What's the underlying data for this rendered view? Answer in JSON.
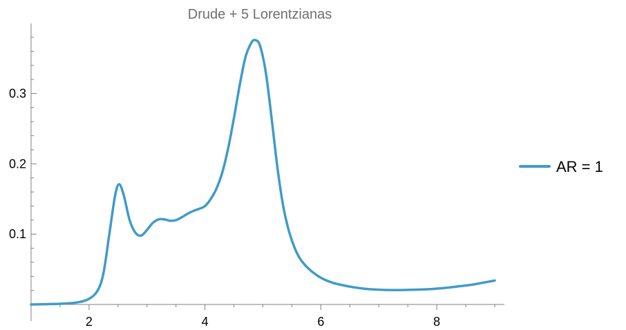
{
  "chart_data": {
    "type": "line",
    "title": "Drude + 5 Lorentzianas",
    "xlabel": "",
    "ylabel": "",
    "xlim": [
      1.0,
      9.0
    ],
    "ylim": [
      0.0,
      0.38
    ],
    "x_ticks": [
      2,
      4,
      6,
      8
    ],
    "y_ticks": [
      0.1,
      0.2,
      0.3
    ],
    "x_tick_labels": [
      "2",
      "4",
      "6",
      "8"
    ],
    "y_tick_labels": [
      "0.1",
      "0.2",
      "0.3"
    ],
    "grid": false,
    "legend_position": "right",
    "colors": {
      "series": "#3f9bc9",
      "axis": "#7f7f7f"
    },
    "series": [
      {
        "name": "AR = 1",
        "x": [
          1.0,
          1.5,
          1.8,
          2.0,
          2.15,
          2.25,
          2.35,
          2.45,
          2.52,
          2.6,
          2.7,
          2.8,
          2.9,
          3.0,
          3.1,
          3.2,
          3.3,
          3.4,
          3.5,
          3.6,
          3.7,
          3.8,
          3.9,
          4.0,
          4.1,
          4.2,
          4.3,
          4.4,
          4.5,
          4.6,
          4.7,
          4.8,
          4.87,
          4.95,
          5.05,
          5.15,
          5.25,
          5.35,
          5.45,
          5.55,
          5.65,
          5.8,
          6.0,
          6.2,
          6.4,
          6.6,
          6.8,
          7.0,
          7.2,
          7.4,
          7.6,
          7.8,
          8.0,
          8.2,
          8.4,
          8.6,
          8.8,
          9.0
        ],
        "values": [
          0.0,
          0.001,
          0.003,
          0.008,
          0.02,
          0.045,
          0.1,
          0.155,
          0.171,
          0.155,
          0.12,
          0.102,
          0.098,
          0.106,
          0.116,
          0.121,
          0.121,
          0.119,
          0.12,
          0.124,
          0.129,
          0.133,
          0.136,
          0.14,
          0.15,
          0.165,
          0.188,
          0.222,
          0.265,
          0.312,
          0.352,
          0.372,
          0.376,
          0.368,
          0.33,
          0.265,
          0.195,
          0.14,
          0.104,
          0.08,
          0.064,
          0.05,
          0.038,
          0.031,
          0.027,
          0.024,
          0.022,
          0.021,
          0.0205,
          0.0205,
          0.021,
          0.0215,
          0.0225,
          0.024,
          0.026,
          0.028,
          0.031,
          0.034
        ]
      }
    ]
  }
}
